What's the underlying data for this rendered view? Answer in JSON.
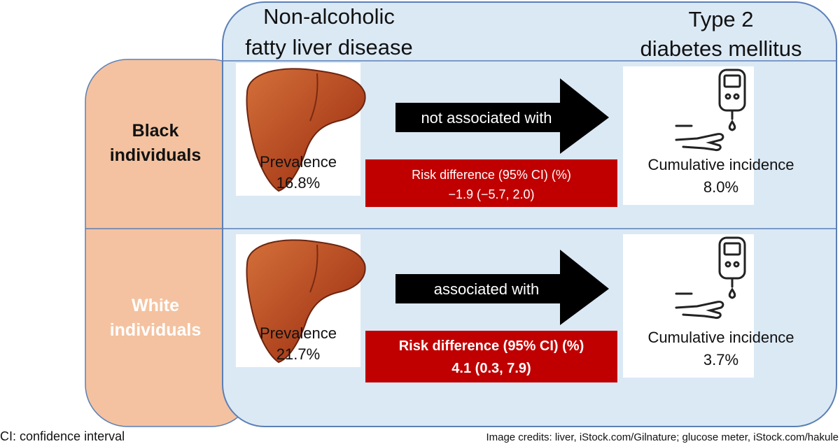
{
  "header": {
    "left": [
      "Non-alcoholic",
      "fatty liver disease"
    ],
    "right": [
      "Type 2",
      "diabetes mellitus"
    ]
  },
  "rows": [
    {
      "group": [
        "Black",
        "individuals"
      ],
      "prevalence_label": "Prevalence",
      "prevalence": "16.8%",
      "arrow": "not associated with",
      "risk_title": "Risk difference (95% CI) (%)",
      "risk_value": "−1.9 (−5.7, 2.0)",
      "incidence_label": "Cumulative incidence",
      "incidence": "8.0%"
    },
    {
      "group": [
        "White",
        "individuals"
      ],
      "prevalence_label": "Prevalence",
      "prevalence": "21.7%",
      "arrow": "associated with",
      "risk_title": "Risk difference (95% CI) (%)",
      "risk_value": "4.1 (0.3, 7.9)",
      "incidence_label": "Cumulative incidence",
      "incidence": "3.7%"
    }
  ],
  "footnote": "CI: confidence interval",
  "credits": "Image credits: liver, iStock.com/Gilnature; glucose meter, iStock.com/hakule"
}
